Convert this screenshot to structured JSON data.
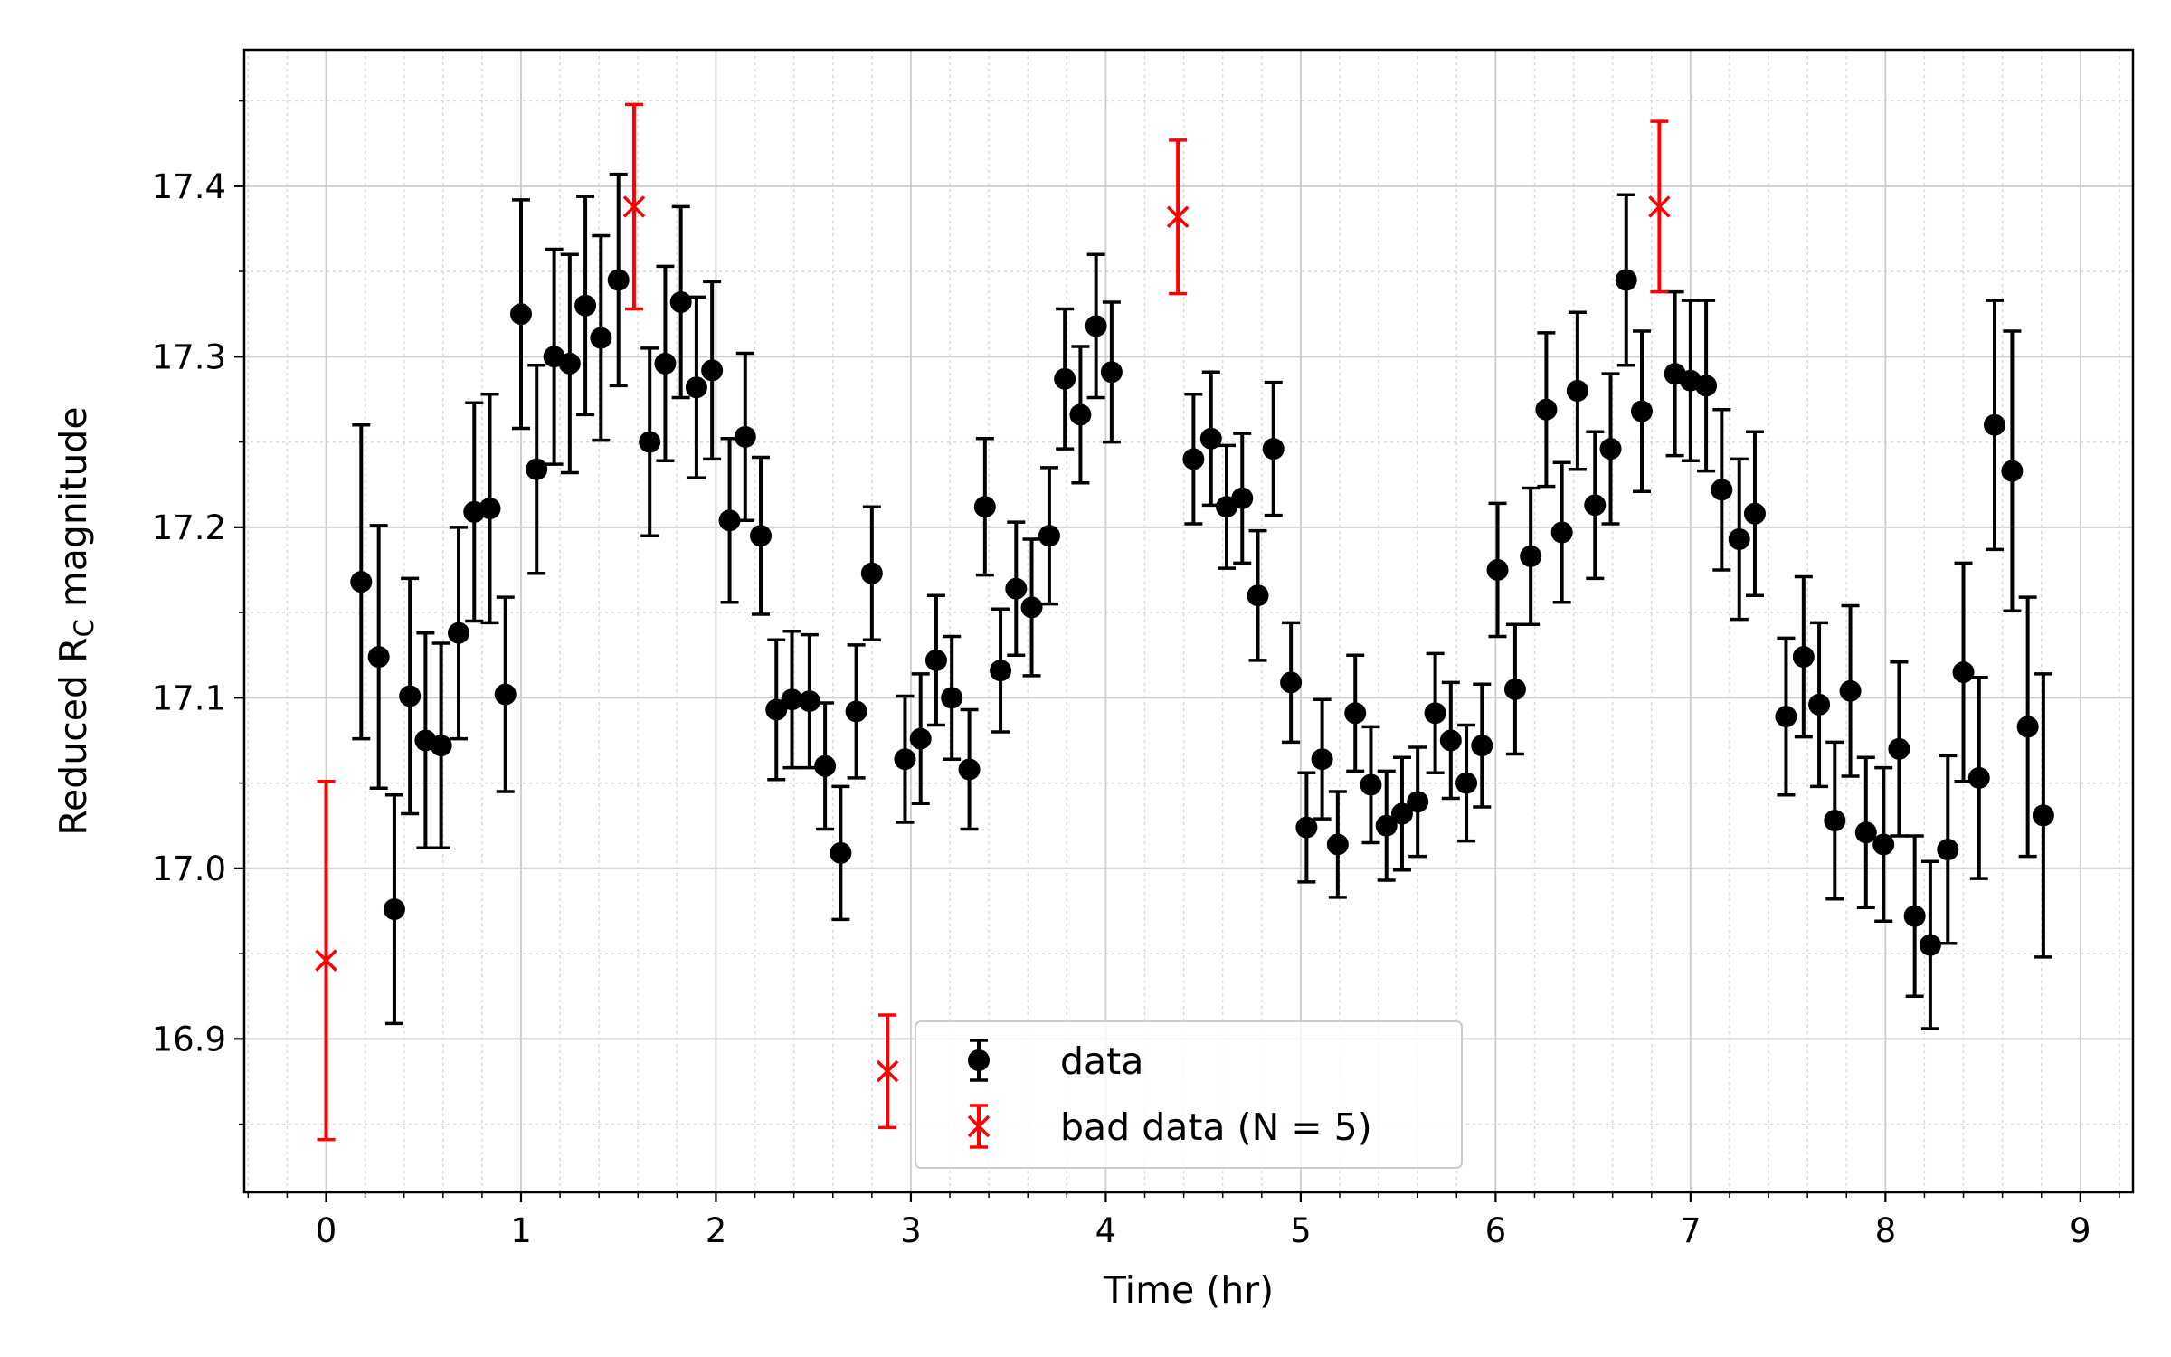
{
  "chart_data": {
    "type": "scatter",
    "title": "",
    "xlabel": "Time (hr)",
    "ylabel_prefix": "Reduced R",
    "ylabel_sub": "C",
    "ylabel_suffix": " magnitude",
    "xlim": [
      -0.42,
      9.27
    ],
    "ylim": [
      16.81,
      17.48
    ],
    "x_ticks": [
      0,
      1,
      2,
      3,
      4,
      5,
      6,
      7,
      8,
      9
    ],
    "y_ticks": [
      16.9,
      17.0,
      17.1,
      17.2,
      17.3,
      17.4
    ],
    "x_tick_labels": [
      "0",
      "1",
      "2",
      "3",
      "4",
      "5",
      "6",
      "7",
      "8",
      "9"
    ],
    "y_tick_labels": [
      "16.9",
      "17.0",
      "17.1",
      "17.2",
      "17.3",
      "17.4"
    ],
    "grid": true,
    "minor_grid": true,
    "legend_position": "bottom-center",
    "colors": {
      "data": "#000000",
      "bad": "#ff0000"
    },
    "series": [
      {
        "name": "data",
        "marker": "circle",
        "points": [
          [
            0.18,
            17.168,
            0.092
          ],
          [
            0.27,
            17.124,
            0.077
          ],
          [
            0.35,
            16.976,
            0.067
          ],
          [
            0.43,
            17.101,
            0.069
          ],
          [
            0.51,
            17.075,
            0.063
          ],
          [
            0.59,
            17.072,
            0.06
          ],
          [
            0.68,
            17.138,
            0.062
          ],
          [
            0.76,
            17.209,
            0.064
          ],
          [
            0.84,
            17.211,
            0.067
          ],
          [
            0.92,
            17.102,
            0.057
          ],
          [
            1.0,
            17.325,
            0.067
          ],
          [
            1.08,
            17.234,
            0.061
          ],
          [
            1.17,
            17.3,
            0.063
          ],
          [
            1.25,
            17.296,
            0.064
          ],
          [
            1.33,
            17.33,
            0.064
          ],
          [
            1.41,
            17.311,
            0.06
          ],
          [
            1.5,
            17.345,
            0.062
          ],
          [
            1.66,
            17.25,
            0.055
          ],
          [
            1.74,
            17.296,
            0.057
          ],
          [
            1.82,
            17.332,
            0.056
          ],
          [
            1.9,
            17.282,
            0.053
          ],
          [
            1.98,
            17.292,
            0.052
          ],
          [
            2.07,
            17.204,
            0.048
          ],
          [
            2.15,
            17.253,
            0.049
          ],
          [
            2.23,
            17.195,
            0.046
          ],
          [
            2.31,
            17.093,
            0.041
          ],
          [
            2.39,
            17.099,
            0.04
          ],
          [
            2.48,
            17.098,
            0.039
          ],
          [
            2.56,
            17.06,
            0.037
          ],
          [
            2.64,
            17.009,
            0.039
          ],
          [
            2.72,
            17.092,
            0.039
          ],
          [
            2.8,
            17.173,
            0.039
          ],
          [
            2.97,
            17.064,
            0.037
          ],
          [
            3.05,
            17.076,
            0.038
          ],
          [
            3.13,
            17.122,
            0.038
          ],
          [
            3.21,
            17.1,
            0.036
          ],
          [
            3.3,
            17.058,
            0.035
          ],
          [
            3.38,
            17.212,
            0.04
          ],
          [
            3.46,
            17.116,
            0.036
          ],
          [
            3.54,
            17.164,
            0.039
          ],
          [
            3.62,
            17.153,
            0.04
          ],
          [
            3.71,
            17.195,
            0.04
          ],
          [
            3.79,
            17.287,
            0.041
          ],
          [
            3.87,
            17.266,
            0.04
          ],
          [
            3.95,
            17.318,
            0.042
          ],
          [
            4.03,
            17.291,
            0.041
          ],
          [
            4.45,
            17.24,
            0.038
          ],
          [
            4.54,
            17.252,
            0.039
          ],
          [
            4.62,
            17.212,
            0.036
          ],
          [
            4.7,
            17.217,
            0.038
          ],
          [
            4.78,
            17.16,
            0.038
          ],
          [
            4.86,
            17.246,
            0.039
          ],
          [
            4.95,
            17.109,
            0.035
          ],
          [
            5.03,
            17.024,
            0.032
          ],
          [
            5.11,
            17.064,
            0.035
          ],
          [
            5.19,
            17.014,
            0.031
          ],
          [
            5.28,
            17.091,
            0.034
          ],
          [
            5.36,
            17.049,
            0.034
          ],
          [
            5.44,
            17.025,
            0.032
          ],
          [
            5.52,
            17.032,
            0.033
          ],
          [
            5.6,
            17.039,
            0.032
          ],
          [
            5.69,
            17.091,
            0.035
          ],
          [
            5.77,
            17.075,
            0.034
          ],
          [
            5.85,
            17.05,
            0.034
          ],
          [
            5.93,
            17.072,
            0.036
          ],
          [
            6.01,
            17.175,
            0.039
          ],
          [
            6.1,
            17.105,
            0.038
          ],
          [
            6.18,
            17.183,
            0.04
          ],
          [
            6.26,
            17.269,
            0.045
          ],
          [
            6.34,
            17.197,
            0.041
          ],
          [
            6.42,
            17.28,
            0.046
          ],
          [
            6.51,
            17.213,
            0.043
          ],
          [
            6.59,
            17.246,
            0.044
          ],
          [
            6.67,
            17.345,
            0.05
          ],
          [
            6.75,
            17.268,
            0.047
          ],
          [
            6.92,
            17.29,
            0.048
          ],
          [
            7.0,
            17.286,
            0.047
          ],
          [
            7.08,
            17.283,
            0.05
          ],
          [
            7.16,
            17.222,
            0.047
          ],
          [
            7.25,
            17.193,
            0.047
          ],
          [
            7.33,
            17.208,
            0.048
          ],
          [
            7.49,
            17.089,
            0.046
          ],
          [
            7.58,
            17.124,
            0.047
          ],
          [
            7.66,
            17.096,
            0.048
          ],
          [
            7.74,
            17.028,
            0.046
          ],
          [
            7.82,
            17.104,
            0.05
          ],
          [
            7.9,
            17.021,
            0.044
          ],
          [
            7.99,
            17.014,
            0.045
          ],
          [
            8.07,
            17.07,
            0.051
          ],
          [
            8.15,
            16.972,
            0.047
          ],
          [
            8.23,
            16.955,
            0.049
          ],
          [
            8.32,
            17.011,
            0.055
          ],
          [
            8.4,
            17.115,
            0.064
          ],
          [
            8.48,
            17.053,
            0.059
          ],
          [
            8.56,
            17.26,
            0.073
          ],
          [
            8.65,
            17.233,
            0.082
          ],
          [
            8.73,
            17.083,
            0.076
          ],
          [
            8.81,
            17.031,
            0.083
          ]
        ]
      },
      {
        "name": "bad data (N = 5)",
        "marker": "x",
        "points": [
          [
            0.0,
            16.946,
            0.105
          ],
          [
            1.58,
            17.388,
            0.06
          ],
          [
            2.88,
            16.881,
            0.033
          ],
          [
            4.37,
            17.382,
            0.045
          ],
          [
            6.84,
            17.388,
            0.05
          ]
        ]
      }
    ]
  }
}
